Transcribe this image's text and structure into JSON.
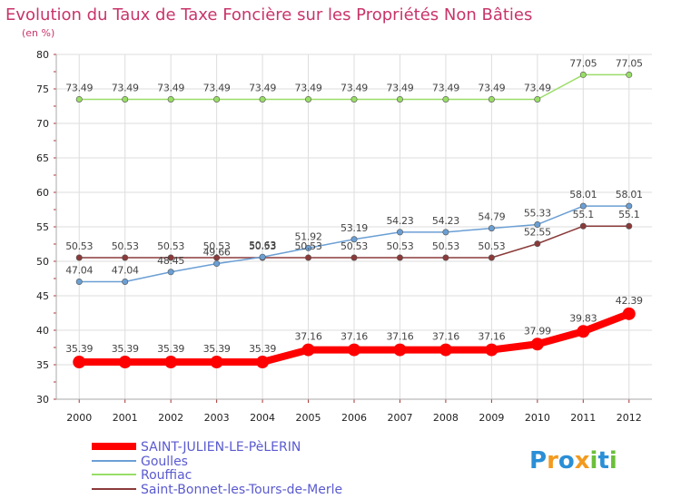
{
  "chart_data": {
    "type": "line",
    "title": "Evolution du Taux de Taxe Foncière sur les Propriétés Non Bâties",
    "subtitle": "(en %)",
    "xlabel": "",
    "ylabel": "(en %)",
    "ylim": [
      30,
      80
    ],
    "yticks": [
      "30",
      "35",
      "40",
      "45",
      "50",
      "55",
      "60",
      "65",
      "70",
      "75",
      "80"
    ],
    "categories": [
      "2000",
      "2001",
      "2002",
      "2003",
      "2004",
      "2005",
      "2006",
      "2007",
      "2008",
      "2009",
      "2010",
      "2011",
      "2012"
    ],
    "grid": true,
    "legend_position": "bottom-left",
    "series": [
      {
        "name": "SAINT-JULIEN-LE-PèLERIN",
        "color": "#ff0000",
        "values": [
          35.39,
          35.39,
          35.39,
          35.39,
          35.39,
          37.16,
          37.16,
          37.16,
          37.16,
          37.16,
          37.99,
          39.83,
          42.39
        ],
        "labels": [
          "35.39",
          "35.39",
          "35.39",
          "35.39",
          "35.39",
          "37.16",
          "37.16",
          "37.16",
          "37.16",
          "37.16",
          "37.99",
          "39.83",
          "42.39"
        ]
      },
      {
        "name": "Goulles",
        "color": "#6b9fd4",
        "values": [
          47.04,
          47.04,
          48.45,
          49.66,
          50.63,
          51.92,
          53.19,
          54.23,
          54.23,
          54.79,
          55.33,
          58.01,
          58.01
        ],
        "labels": [
          "47.04",
          "47.04",
          "48.45",
          "49.66",
          "50.63",
          "51.92",
          "53.19",
          "54.23",
          "54.23",
          "54.79",
          "55.33",
          "58.01",
          "58.01"
        ]
      },
      {
        "name": "Rouffiac",
        "color": "#99dd66",
        "values": [
          73.49,
          73.49,
          73.49,
          73.49,
          73.49,
          73.49,
          73.49,
          73.49,
          73.49,
          73.49,
          73.49,
          77.05,
          77.05
        ],
        "labels": [
          "73.49",
          "73.49",
          "73.49",
          "73.49",
          "73.49",
          "73.49",
          "73.49",
          "73.49",
          "73.49",
          "73.49",
          "73.49",
          "77.05",
          "77.05"
        ]
      },
      {
        "name": "Saint-Bonnet-les-Tours-de-Merle",
        "color": "#8b3a3a",
        "values": [
          50.53,
          50.53,
          50.53,
          50.53,
          50.53,
          50.53,
          50.53,
          50.53,
          50.53,
          50.53,
          52.55,
          55.1,
          55.1
        ],
        "labels": [
          "50.53",
          "50.53",
          "50.53",
          "50.53",
          "50.53",
          "50.53",
          "50.53",
          "50.53",
          "50.53",
          "50.53",
          "52.55",
          "55.1",
          "55.1"
        ]
      }
    ]
  },
  "logo": {
    "text": "Proxiti",
    "letters": [
      "P",
      "r",
      "o",
      "x",
      "i",
      "t",
      "i"
    ],
    "colors": [
      "#2a8fd6",
      "#f39a1e",
      "#2a8fd6",
      "#f39a1e",
      "#6bbf3a",
      "#2a8fd6",
      "#6bbf3a"
    ]
  }
}
